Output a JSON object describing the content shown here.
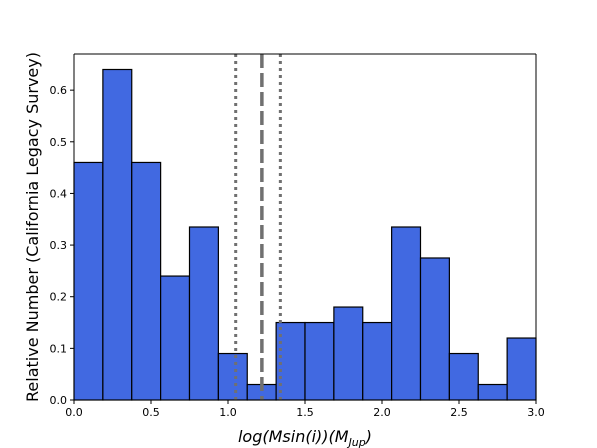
{
  "chart_data": {
    "type": "bar",
    "title": "",
    "xlabel": "log(Msin(i))(M_Jup)",
    "xlabel_parts": {
      "main": "log(Msin(i))(M",
      "sub": "Jup",
      "close": ")"
    },
    "ylabel": "Relative Number (California Legacy Survey)",
    "xlim": [
      0.0,
      3.0
    ],
    "ylim": [
      0.0,
      0.67
    ],
    "xticks": [
      "0.0",
      "0.5",
      "1.0",
      "1.5",
      "2.0",
      "2.5",
      "3.0"
    ],
    "yticks": [
      "0.0",
      "0.1",
      "0.2",
      "0.3",
      "0.4",
      "0.5",
      "0.6"
    ],
    "bin_width": 0.1875,
    "bins": [
      {
        "x0": 0.0,
        "x1": 0.1875,
        "value": 0.46
      },
      {
        "x0": 0.1875,
        "x1": 0.375,
        "value": 0.64
      },
      {
        "x0": 0.375,
        "x1": 0.5625,
        "value": 0.46
      },
      {
        "x0": 0.5625,
        "x1": 0.75,
        "value": 0.24
      },
      {
        "x0": 0.75,
        "x1": 0.9375,
        "value": 0.335
      },
      {
        "x0": 0.9375,
        "x1": 1.125,
        "value": 0.09
      },
      {
        "x0": 1.125,
        "x1": 1.3125,
        "value": 0.03
      },
      {
        "x0": 1.3125,
        "x1": 1.5,
        "value": 0.15
      },
      {
        "x0": 1.5,
        "x1": 1.6875,
        "value": 0.15
      },
      {
        "x0": 1.6875,
        "x1": 1.875,
        "value": 0.18
      },
      {
        "x0": 1.875,
        "x1": 2.0625,
        "value": 0.15
      },
      {
        "x0": 2.0625,
        "x1": 2.25,
        "value": 0.335
      },
      {
        "x0": 2.25,
        "x1": 2.4375,
        "value": 0.275
      },
      {
        "x0": 2.4375,
        "x1": 2.625,
        "value": 0.09
      },
      {
        "x0": 2.625,
        "x1": 2.8125,
        "value": 0.03
      },
      {
        "x0": 2.8125,
        "x1": 3.0,
        "value": 0.12
      }
    ],
    "vlines": [
      {
        "x": 1.05,
        "style": "dotted"
      },
      {
        "x": 1.22,
        "style": "dashed"
      },
      {
        "x": 1.34,
        "style": "dotted"
      }
    ],
    "colors": {
      "bar_fill": "#4169e1",
      "bar_edge": "#000000",
      "vline": "#707070"
    },
    "grid": false
  }
}
